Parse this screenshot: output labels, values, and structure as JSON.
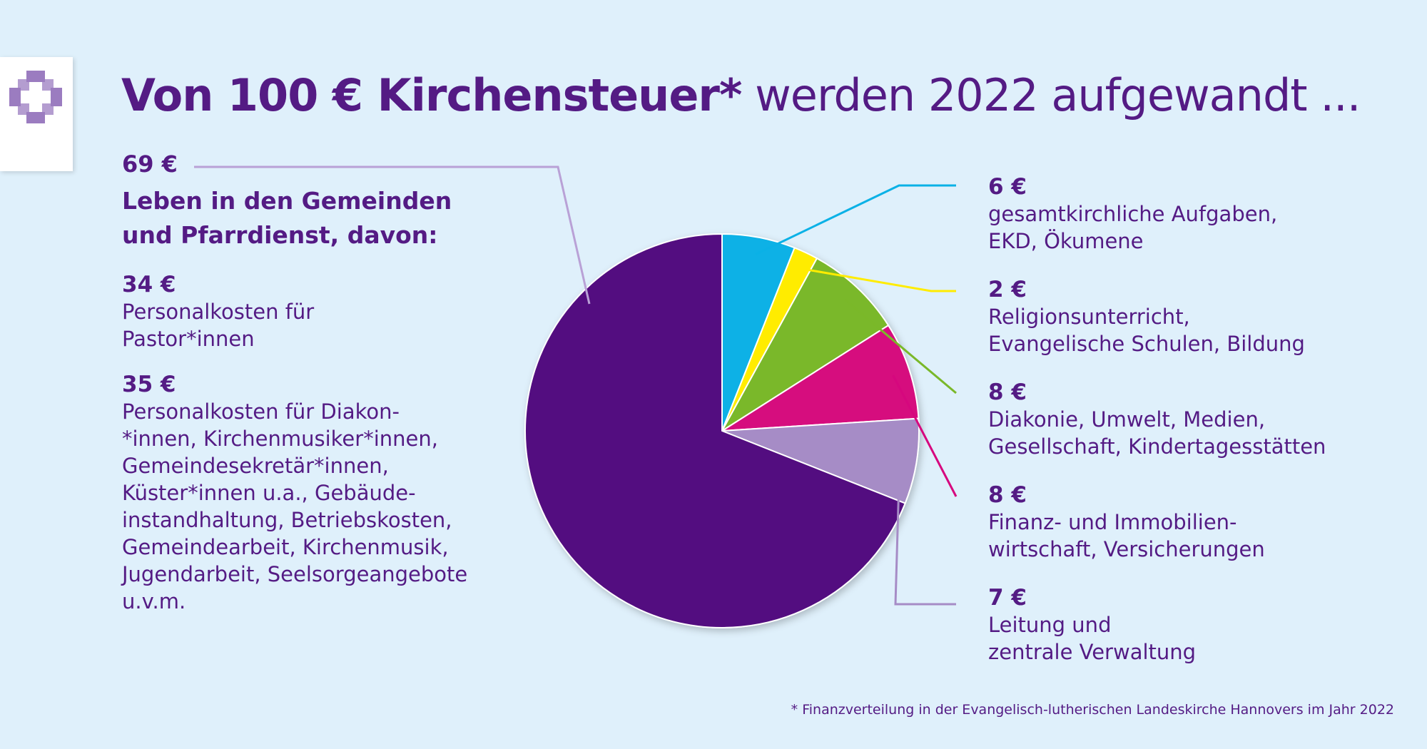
{
  "title": {
    "bold": "Von 100 € Kirchensteuer*",
    "rest": "werden 2022 aufgewandt ..."
  },
  "logo": {
    "icon": "cross-icon",
    "color": "#9b7cc0"
  },
  "main_category": {
    "amount": "69 €",
    "label_line1": "Leben in den Gemeinden",
    "label_line2": "und Pfarrdienst, davon:",
    "subitems": [
      {
        "amount": "34 €",
        "lines": [
          "Personalkosten für",
          "Pastor*innen"
        ]
      },
      {
        "amount": "35 €",
        "lines": [
          "Personalkosten für Diakon-",
          "*innen, Kirchenmusiker*innen,",
          "Gemeindesekretär*innen,",
          "Küster*innen u.a., Gebäude-",
          "instandhaltung, Betriebskosten,",
          "Gemeindearbeit, Kirchenmusik,",
          "Jugendarbeit, Seelsorgeangebote",
          "u.v.m."
        ]
      }
    ]
  },
  "categories": [
    {
      "amount": "6 €",
      "lines": [
        "gesamtkirchliche Aufgaben,",
        "EKD, Ökumene"
      ]
    },
    {
      "amount": "2 €",
      "lines": [
        "Religionsunterricht,",
        "Evangelische Schulen, Bildung"
      ]
    },
    {
      "amount": "8 €",
      "lines": [
        "Diakonie, Umwelt, Medien,",
        "Gesellschaft, Kindertagesstätten"
      ]
    },
    {
      "amount": "8 €",
      "lines": [
        "Finanz- und Immobilien-",
        "wirtschaft, Versicherungen"
      ]
    },
    {
      "amount": "7 €",
      "lines": [
        "Leitung und",
        "zentrale Verwaltung"
      ]
    }
  ],
  "footnote": "* Finanzverteilung in der Evangelisch-lutherischen Landeskirche Hannovers im Jahr 2022",
  "chart_data": {
    "type": "pie",
    "total": 100,
    "start_angle_deg": 90,
    "direction": "clockwise",
    "slices": [
      {
        "label": "gesamtkirchliche Aufgaben, EKD, Ökumene",
        "value": 6,
        "color": "#0ab1e6"
      },
      {
        "label": "Religionsunterricht, Evangelische Schulen, Bildung",
        "value": 2,
        "color": "#ffec00"
      },
      {
        "label": "Diakonie, Umwelt, Medien, Gesellschaft, Kindertagesstätten",
        "value": 8,
        "color": "#7ab829"
      },
      {
        "label": "Finanz- und Immobilienwirtschaft, Versicherungen",
        "value": 8,
        "color": "#d6077e"
      },
      {
        "label": "Leitung und zentrale Verwaltung",
        "value": 7,
        "color": "#a68cc6"
      },
      {
        "label": "Leben in den Gemeinden und Pfarrdienst",
        "value": 69,
        "color": "#521180"
      }
    ]
  }
}
